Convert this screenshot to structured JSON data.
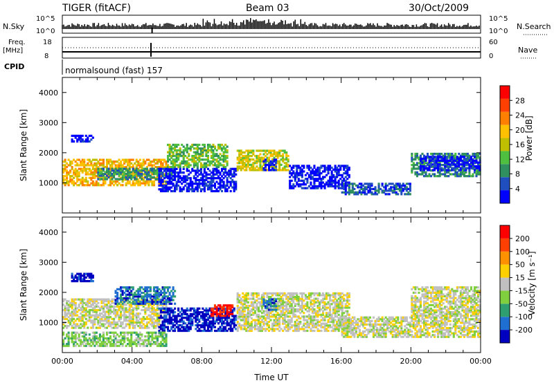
{
  "header": {
    "radar": "TIGER (fitACF)",
    "beam": "Beam 03",
    "date": "30/Oct/2009"
  },
  "summary": {
    "nsky_label": "N.Sky",
    "nsky_ticks": [
      "10^5",
      "10^0"
    ],
    "nsearch_label": "N.Search",
    "nsearch_ticks": [
      "10^5",
      "10^0"
    ],
    "freq_label_line1": "Freq.",
    "freq_label_line2": "[MHz]",
    "freq_ticks": [
      "18",
      "8"
    ],
    "nave_label": "Nave",
    "nave_ticks": [
      "60",
      "0"
    ],
    "cpid_label": "CPID",
    "cpid_value": "normalsound (fast) 157"
  },
  "colors": {
    "power": [
      "#0000ff",
      "#1f4fbf",
      "#2f8f5f",
      "#4fbf3f",
      "#bfbf00",
      "#ffc000",
      "#ff8000",
      "#ff4000",
      "#ff0000"
    ],
    "velocity": [
      "#0000c0",
      "#1f6fd0",
      "#2f9f6f",
      "#7fcf3f",
      "#c0c0c0",
      "#ffd000",
      "#ff9000",
      "#ff4000",
      "#ff0000"
    ]
  },
  "chart_data": [
    {
      "type": "heatmap",
      "name": "power",
      "xlabel": "",
      "ylabel": "Slant Range [km]",
      "xlim": [
        "00:00",
        "24:00"
      ],
      "ylim": [
        0,
        4500
      ],
      "yticks": [
        "1000",
        "2000",
        "3000",
        "4000"
      ],
      "colorbar_label": "Power [dB]",
      "colorbar_ticks": [
        "4",
        "8",
        "12",
        "16",
        "20",
        "24",
        "28"
      ],
      "bands": [
        {
          "t0": 0.0,
          "t1": 6.0,
          "r0": 900,
          "r1": 1800,
          "level": 3
        },
        {
          "t0": 0.5,
          "t1": 1.8,
          "r0": 2350,
          "r1": 2600,
          "level": 8
        },
        {
          "t0": 2.0,
          "t1": 6.5,
          "r0": 1100,
          "r1": 1500,
          "level": 6
        },
        {
          "t0": 5.5,
          "t1": 10.0,
          "r0": 700,
          "r1": 1500,
          "level": 8
        },
        {
          "t0": 6.0,
          "t1": 9.5,
          "r0": 1500,
          "r1": 2300,
          "level": 5
        },
        {
          "t0": 10.0,
          "t1": 13.0,
          "r0": 1400,
          "r1": 2100,
          "level": 4
        },
        {
          "t0": 11.5,
          "t1": 12.3,
          "r0": 1400,
          "r1": 1800,
          "level": 8
        },
        {
          "t0": 13.0,
          "t1": 16.5,
          "r0": 800,
          "r1": 1600,
          "level": 8
        },
        {
          "t0": 16.0,
          "t1": 20.0,
          "r0": 600,
          "r1": 1000,
          "level": 7
        },
        {
          "t0": 20.0,
          "t1": 24.0,
          "r0": 1200,
          "r1": 2000,
          "level": 6
        },
        {
          "t0": 20.5,
          "t1": 24.0,
          "r0": 1400,
          "r1": 1900,
          "level": 8
        }
      ]
    },
    {
      "type": "heatmap",
      "name": "velocity",
      "xlabel": "Time UT",
      "ylabel": "Slant Range [km]",
      "xlim": [
        "00:00",
        "24:00"
      ],
      "ylim": [
        0,
        4500
      ],
      "xticks": [
        "00:00",
        "04:00",
        "08:00",
        "12:00",
        "16:00",
        "20:00",
        "00:00"
      ],
      "yticks": [
        "1000",
        "2000",
        "3000",
        "4000"
      ],
      "colorbar_label": "Velocity [m s⁻¹]",
      "colorbar_ticks": [
        "200",
        "100",
        "50",
        "15",
        "-15",
        "-50",
        "-100",
        "-200"
      ],
      "bands": [
        {
          "t0": 0.0,
          "t1": 6.0,
          "r0": 800,
          "r1": 1800,
          "level": 4
        },
        {
          "t0": 0.5,
          "t1": 1.8,
          "r0": 2350,
          "r1": 2650,
          "level": 8
        },
        {
          "t0": 3.0,
          "t1": 6.5,
          "r0": 1600,
          "r1": 2200,
          "level": 7
        },
        {
          "t0": 5.5,
          "t1": 10.0,
          "r0": 700,
          "r1": 1500,
          "level": 8
        },
        {
          "t0": 8.5,
          "t1": 9.8,
          "r0": 1200,
          "r1": 1600,
          "level": 0
        },
        {
          "t0": 10.0,
          "t1": 16.5,
          "r0": 700,
          "r1": 2000,
          "level": 4
        },
        {
          "t0": 11.5,
          "t1": 12.3,
          "r0": 1400,
          "r1": 1800,
          "level": 7
        },
        {
          "t0": 16.0,
          "t1": 24.0,
          "r0": 500,
          "r1": 1200,
          "level": 4
        },
        {
          "t0": 20.0,
          "t1": 24.0,
          "r0": 1200,
          "r1": 2200,
          "level": 4
        },
        {
          "t0": 0.0,
          "t1": 6.0,
          "r0": 200,
          "r1": 700,
          "level": 5
        }
      ]
    }
  ]
}
